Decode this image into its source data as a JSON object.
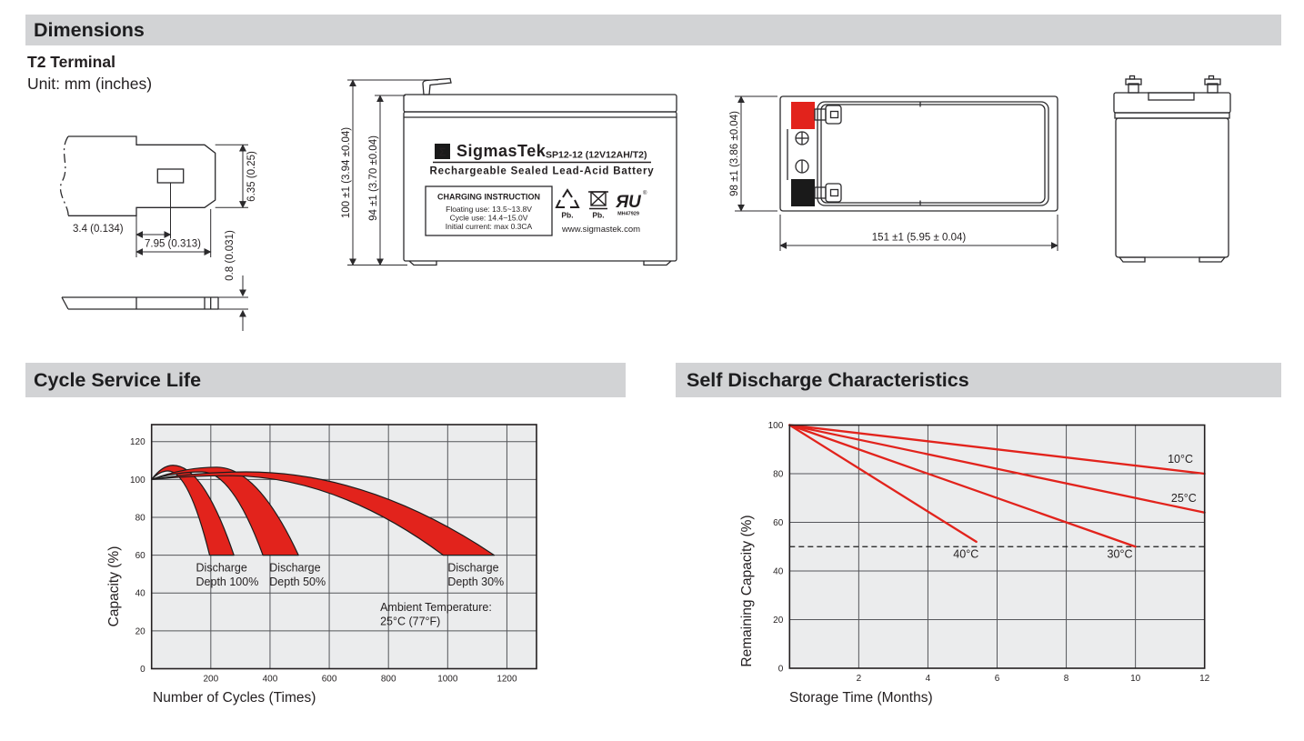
{
  "colors": {
    "accent_red": "#e2231c",
    "bar_gray": "#d2d3d5",
    "ink": "#231f20",
    "plot_bg": "#ebeced",
    "grid": "#55565a"
  },
  "sections": {
    "dimensions": {
      "title": "Dimensions",
      "subtitle": "T2 Terminal",
      "unit_note": "Unit: mm (inches)"
    },
    "cycle_life": {
      "title": "Cycle Service Life"
    },
    "self_discharge": {
      "title": "Self Discharge Characteristics"
    }
  },
  "terminal_drawing": {
    "dim_offset": "3.4 (0.134)",
    "dim_width": "7.95 (0.313)",
    "dim_height": "6.35 (0.25)",
    "dim_thickness": "0.8 (0.031)"
  },
  "front_view": {
    "dim_total_height": "100 ±1 (3.94 ±0.04)",
    "dim_case_height": "94 ±1 (3.70 ±0.04)",
    "logo_sigma": "Σ",
    "brand": "SigmasTek",
    "model": "SP12-12 (12V12AH/T2)",
    "subtitle": "Rechargeable Sealed Lead-Acid Battery",
    "charging_title": "CHARGING INSTRUCTION",
    "charging_lines": [
      "Floating use: 13.5~13.8V",
      "Cycle use: 14.4~15.0V",
      "Initial current: max 0.3CA"
    ],
    "recycle_label": "Pb.",
    "bin_label": "Pb.",
    "ul_glyph": "ЯU",
    "ul_registered": "®",
    "ul_code": "MH47929",
    "website": "www.sigmastek.com"
  },
  "top_view": {
    "dim_height": "98 ±1 (3.86 ±0.04)",
    "dim_width": "151 ±1 (5.95 ± 0.04)"
  },
  "chart_data": [
    {
      "type": "area",
      "title": "Cycle Service Life",
      "xlabel": "Number of Cycles (Times)",
      "ylabel": "Capacity (%)",
      "xlim": [
        0,
        1300
      ],
      "ylim": [
        0,
        129
      ],
      "xticks": [
        200,
        400,
        600,
        800,
        1000,
        1200
      ],
      "yticks": [
        0,
        20,
        40,
        60,
        80,
        100,
        120
      ],
      "grid": true,
      "legend_position": "none",
      "band_floor": 60,
      "series": [
        {
          "name": "Discharge Depth 100%",
          "upper": [
            [
              0,
              100
            ],
            [
              72,
              107.5
            ],
            [
              278,
              60
            ]
          ],
          "lower": [
            [
              0,
              100
            ],
            [
              55,
              104.5
            ],
            [
              196,
              60
            ]
          ]
        },
        {
          "name": "Discharge Depth 50%",
          "upper": [
            [
              0,
              100
            ],
            [
              220,
              106.5
            ],
            [
              496,
              60
            ]
          ],
          "lower": [
            [
              0,
              100
            ],
            [
              170,
              104
            ],
            [
              376,
              60
            ]
          ]
        },
        {
          "name": "Discharge Depth 30%",
          "upper": [
            [
              0,
              100
            ],
            [
              320,
              104
            ],
            [
              1157,
              60
            ]
          ],
          "lower": [
            [
              0,
              100
            ],
            [
              260,
              102
            ],
            [
              985,
              60
            ]
          ]
        }
      ],
      "annotations": [
        {
          "lines": [
            "Discharge",
            "Depth 100%"
          ],
          "x": 150,
          "y": 51.5,
          "align": "start"
        },
        {
          "lines": [
            "Discharge",
            "Depth 50%"
          ],
          "x": 398,
          "y": 51.5,
          "align": "start"
        },
        {
          "lines": [
            "Discharge",
            "Depth 30%"
          ],
          "x": 1000,
          "y": 51.5,
          "align": "start"
        },
        {
          "lines": [
            "Ambient Temperature:",
            "25°C (77°F)"
          ],
          "x": 772,
          "y": 30.5,
          "align": "start"
        }
      ]
    },
    {
      "type": "line",
      "title": "Self Discharge Characteristics",
      "xlabel": "Storage Time (Months)",
      "ylabel": "Remaining Capacity (%)",
      "xlim": [
        0,
        12
      ],
      "ylim": [
        0,
        100
      ],
      "xticks": [
        2,
        4,
        6,
        8,
        10,
        12
      ],
      "yticks": [
        0,
        20,
        40,
        60,
        80,
        100
      ],
      "grid": true,
      "legend_position": "inline-labels",
      "line_color": "#e2231c",
      "reference_line": {
        "y": 50,
        "style": "dashed"
      },
      "series": [
        {
          "name": "10°C",
          "points": [
            [
              0,
              100
            ],
            [
              12,
              80
            ]
          ]
        },
        {
          "name": "25°C",
          "points": [
            [
              0,
              100
            ],
            [
              12,
              64
            ]
          ]
        },
        {
          "name": "30°C",
          "points": [
            [
              0,
              100
            ],
            [
              10,
              50
            ]
          ]
        },
        {
          "name": "40°C",
          "points": [
            [
              0,
              100
            ],
            [
              5.4,
              52
            ]
          ]
        }
      ],
      "labels": [
        {
          "text": "10°C",
          "x": 11.3,
          "y": 84.5
        },
        {
          "text": "25°C",
          "x": 11.4,
          "y": 68.5
        },
        {
          "text": "30°C",
          "x": 9.55,
          "y": 45.5
        },
        {
          "text": "40°C",
          "x": 5.1,
          "y": 45.5
        }
      ]
    }
  ]
}
